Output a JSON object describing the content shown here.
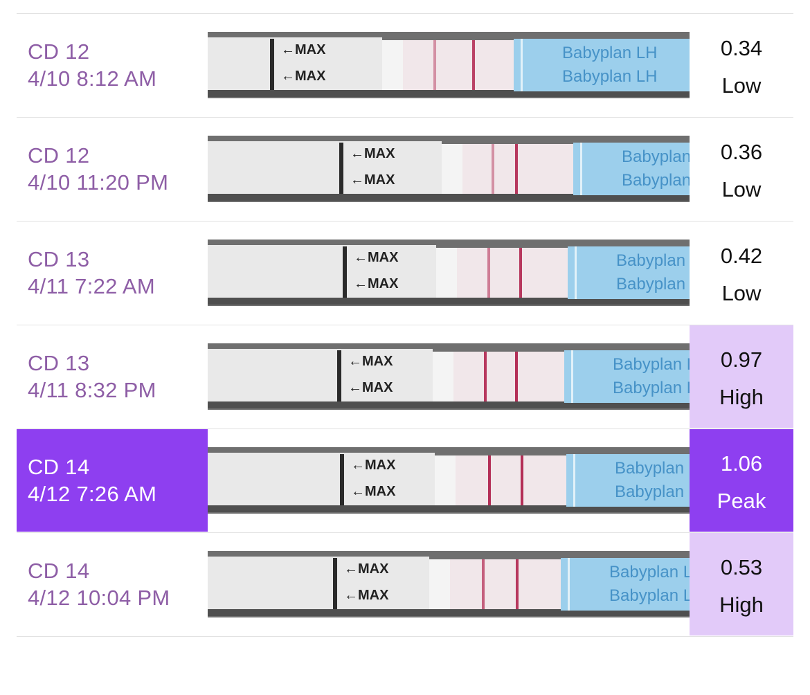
{
  "rows": [
    {
      "cycle_day": "CD 12",
      "datetime": "4/10 8:12 AM",
      "value": "0.34",
      "level": "Low"
    },
    {
      "cycle_day": "CD 12",
      "datetime": "4/10 11:20 PM",
      "value": "0.36",
      "level": "Low"
    },
    {
      "cycle_day": "CD 13",
      "datetime": "4/11 7:22 AM",
      "value": "0.42",
      "level": "Low"
    },
    {
      "cycle_day": "CD 13",
      "datetime": "4/11 8:32 PM",
      "value": "0.97",
      "level": "High"
    },
    {
      "cycle_day": "CD 14",
      "datetime": "4/12 7:26 AM",
      "value": "1.06",
      "level": "Peak"
    },
    {
      "cycle_day": "CD 14",
      "datetime": "4/12 10:04 PM",
      "value": "0.53",
      "level": "High"
    }
  ],
  "strip": {
    "max_label": "←MAX",
    "brand": "Babyplan",
    "brand_suffix": "LH"
  },
  "colors": {
    "label_text": "#8e5ea6",
    "peak_bg": "#8e3ff0",
    "high_bg": "#e2caf9",
    "test_line": "#b0254f",
    "strip_blue": "#9ccfec"
  }
}
